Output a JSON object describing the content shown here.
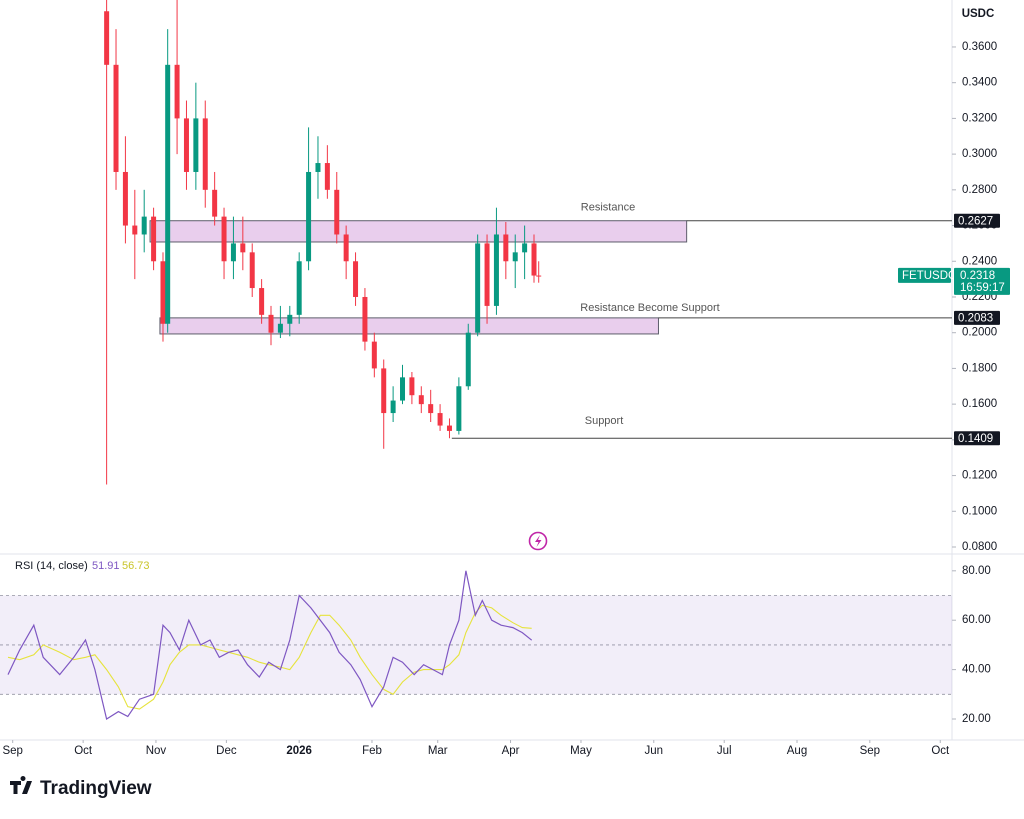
{
  "header": {
    "currency": "USDC"
  },
  "symbol": {
    "name": "FETUSDC",
    "price": 0.2318,
    "countdown": "16:59:17",
    "color": "#089981"
  },
  "brand": "TradingView",
  "chart_data": [
    {
      "type": "candlestick",
      "x": [
        40,
        44,
        48,
        52,
        56,
        60,
        64,
        66,
        70,
        74,
        78,
        82,
        86,
        90,
        94,
        98,
        102,
        106,
        110,
        114,
        118,
        122,
        126,
        130,
        134,
        138,
        142,
        146,
        150,
        154,
        158,
        162,
        166,
        170,
        174,
        178,
        182,
        186,
        190,
        194,
        198,
        202,
        206,
        210,
        214,
        218,
        222,
        224
      ],
      "open": [
        0.38,
        0.35,
        0.29,
        0.26,
        0.255,
        0.265,
        0.24,
        0.205,
        0.35,
        0.32,
        0.29,
        0.32,
        0.28,
        0.265,
        0.24,
        0.25,
        0.245,
        0.225,
        0.21,
        0.2,
        0.205,
        0.21,
        0.24,
        0.29,
        0.295,
        0.28,
        0.255,
        0.24,
        0.22,
        0.195,
        0.18,
        0.155,
        0.162,
        0.175,
        0.165,
        0.16,
        0.155,
        0.148,
        0.145,
        0.17,
        0.2,
        0.25,
        0.215,
        0.255,
        0.24,
        0.245,
        0.25,
        0.232
      ],
      "high": [
        0.4,
        0.37,
        0.31,
        0.28,
        0.28,
        0.27,
        0.245,
        0.37,
        0.39,
        0.33,
        0.34,
        0.33,
        0.29,
        0.27,
        0.265,
        0.265,
        0.25,
        0.23,
        0.215,
        0.215,
        0.215,
        0.245,
        0.315,
        0.31,
        0.305,
        0.29,
        0.26,
        0.245,
        0.225,
        0.2,
        0.185,
        0.17,
        0.182,
        0.178,
        0.17,
        0.168,
        0.16,
        0.152,
        0.175,
        0.205,
        0.255,
        0.255,
        0.27,
        0.262,
        0.255,
        0.26,
        0.255,
        0.24
      ],
      "low": [
        0.115,
        0.28,
        0.25,
        0.23,
        0.245,
        0.235,
        0.195,
        0.2,
        0.3,
        0.28,
        0.28,
        0.27,
        0.26,
        0.23,
        0.23,
        0.235,
        0.22,
        0.205,
        0.193,
        0.197,
        0.198,
        0.205,
        0.235,
        0.275,
        0.275,
        0.25,
        0.23,
        0.215,
        0.19,
        0.175,
        0.135,
        0.15,
        0.16,
        0.16,
        0.155,
        0.15,
        0.145,
        0.1409,
        0.143,
        0.168,
        0.198,
        0.205,
        0.21,
        0.23,
        0.225,
        0.23,
        0.228,
        0.228
      ],
      "close": [
        0.35,
        0.29,
        0.26,
        0.255,
        0.265,
        0.24,
        0.205,
        0.35,
        0.32,
        0.29,
        0.32,
        0.28,
        0.265,
        0.24,
        0.25,
        0.245,
        0.225,
        0.21,
        0.2,
        0.205,
        0.21,
        0.24,
        0.29,
        0.295,
        0.28,
        0.255,
        0.24,
        0.22,
        0.195,
        0.18,
        0.155,
        0.162,
        0.175,
        0.165,
        0.16,
        0.155,
        0.148,
        0.145,
        0.17,
        0.2,
        0.25,
        0.215,
        0.255,
        0.24,
        0.245,
        0.25,
        0.232,
        0.2318
      ],
      "up_color": "#089981",
      "down_color": "#f23645",
      "xlim": [
        -2,
        400
      ],
      "xticks": [
        {
          "value": 0,
          "label": "Sep"
        },
        {
          "value": 30,
          "label": "Oct"
        },
        {
          "value": 61,
          "label": "Nov"
        },
        {
          "value": 91,
          "label": "Dec"
        },
        {
          "value": 122,
          "label": "2026"
        },
        {
          "value": 153,
          "label": "Feb"
        },
        {
          "value": 181,
          "label": "Mar"
        },
        {
          "value": 212,
          "label": "Apr"
        },
        {
          "value": 242,
          "label": "May"
        },
        {
          "value": 273,
          "label": "Jun"
        },
        {
          "value": 303,
          "label": "Jul"
        },
        {
          "value": 334,
          "label": "Aug"
        },
        {
          "value": 365,
          "label": "Sep"
        },
        {
          "value": 395,
          "label": "Oct"
        }
      ],
      "ylim": [
        0.0772,
        0.3863
      ],
      "yticks": [
        {
          "value": 0.36,
          "label": "0.3600"
        },
        {
          "value": 0.34,
          "label": "0.3400"
        },
        {
          "value": 0.32,
          "label": "0.3200"
        },
        {
          "value": 0.3,
          "label": "0.3000"
        },
        {
          "value": 0.28,
          "label": "0.2800"
        },
        {
          "value": 0.26,
          "label": "0.2600"
        },
        {
          "value": 0.24,
          "label": "0.2400"
        },
        {
          "value": 0.22,
          "label": "0.2200"
        },
        {
          "value": 0.2,
          "label": "0.2000"
        },
        {
          "value": 0.18,
          "label": "0.1800"
        },
        {
          "value": 0.16,
          "label": "0.1600"
        },
        {
          "value": 0.14,
          "label": "0.1400"
        },
        {
          "value": 0.12,
          "label": "0.1200"
        },
        {
          "value": 0.1,
          "label": "0.1000"
        },
        {
          "value": 0.08,
          "label": "0.0800"
        }
      ],
      "zones": [
        {
          "low": 0.2508,
          "high": 0.2627,
          "start": 58.5,
          "end": 287,
          "color": "#e1bee7"
        },
        {
          "low": 0.1993,
          "high": 0.2083,
          "start": 62.7,
          "end": 275,
          "color": "#e1bee7"
        }
      ],
      "levels": [
        {
          "label": "Resistance",
          "value": 0.2627,
          "start": 287
        },
        {
          "label": "Resistance Become Support",
          "value": 0.2083,
          "start": 275
        },
        {
          "label": "Support",
          "value": 0.1409,
          "start": 187
        }
      ]
    },
    {
      "type": "line",
      "title": "RSI (14, close)",
      "x": [
        -2,
        3,
        9,
        13,
        20,
        26,
        31,
        35,
        40,
        45,
        49,
        54,
        60,
        64,
        67,
        71,
        75,
        80,
        84,
        88,
        92,
        96,
        100,
        105,
        109,
        114,
        118,
        122,
        127,
        131,
        135,
        139,
        144,
        148,
        153,
        158,
        162,
        166,
        171,
        175,
        179,
        183,
        186,
        190,
        193,
        197,
        200,
        204,
        208,
        213,
        217,
        221
      ],
      "series": [
        {
          "color": "#7e57c2",
          "values": [
            38,
            48,
            58,
            45,
            38,
            45,
            52,
            40,
            20,
            23,
            21,
            28,
            30,
            58,
            55,
            48,
            60,
            50,
            52,
            45,
            47,
            48,
            42,
            37,
            43,
            40,
            52,
            70,
            65,
            60,
            55,
            47,
            42,
            36,
            25,
            33,
            45,
            43,
            38,
            42,
            40,
            38,
            50,
            60,
            80,
            62,
            68,
            60,
            58,
            57,
            55,
            51.91
          ]
        },
        {
          "color": "#e6e33c",
          "values": [
            45,
            44,
            46,
            50,
            47,
            44,
            45,
            46,
            40,
            33,
            25,
            24,
            28,
            35,
            42,
            47,
            50,
            50,
            49,
            48,
            47,
            46,
            45,
            43,
            42,
            41,
            40,
            45,
            55,
            62,
            62,
            58,
            52,
            45,
            38,
            32,
            30,
            35,
            39,
            40,
            40,
            40,
            42,
            46,
            55,
            63,
            66,
            65,
            62,
            59,
            57,
            56.73
          ]
        }
      ],
      "upper_band": 70,
      "middle_band": 50,
      "lower_band": 30,
      "ylim": [
        11.5,
        86
      ],
      "yticks": [
        {
          "value": 80,
          "label": "80.00"
        },
        {
          "value": 60,
          "label": "60.00"
        },
        {
          "value": 40,
          "label": "40.00"
        },
        {
          "value": 20,
          "label": "20.00"
        }
      ]
    }
  ]
}
